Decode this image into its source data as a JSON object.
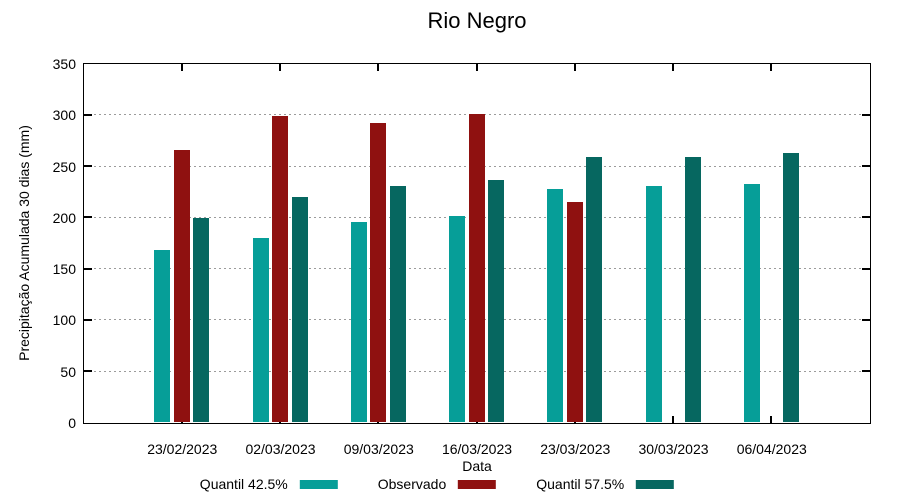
{
  "chart_data": {
    "type": "bar",
    "title": "Rio Negro",
    "xlabel": "Data",
    "ylabel": "Precipitação Acumulada 30 dias (mm)",
    "ylim": [
      0,
      350
    ],
    "ytick_step": 50,
    "yticks": [
      0,
      50,
      100,
      150,
      200,
      250,
      300,
      350
    ],
    "grid": true,
    "legend_position": "bottom",
    "background_color": "#ffffff",
    "gridline_color": "#9b9b9b",
    "axis_color": "#000000",
    "categories": [
      "23/02/2023",
      "02/03/2023",
      "09/03/2023",
      "16/03/2023",
      "23/03/2023",
      "30/03/2023",
      "06/04/2023"
    ],
    "series": [
      {
        "name": "Quantil 42.5%",
        "color": "#069e98",
        "values": [
          168,
          180,
          195,
          201,
          228,
          231,
          233
        ]
      },
      {
        "name": "Observado",
        "color": "#8f1110",
        "values": [
          266,
          299,
          292,
          301,
          215,
          null,
          null
        ]
      },
      {
        "name": "Quantil 57.5%",
        "color": "#066760",
        "values": [
          199,
          220,
          231,
          236,
          259,
          259,
          263
        ]
      }
    ]
  }
}
